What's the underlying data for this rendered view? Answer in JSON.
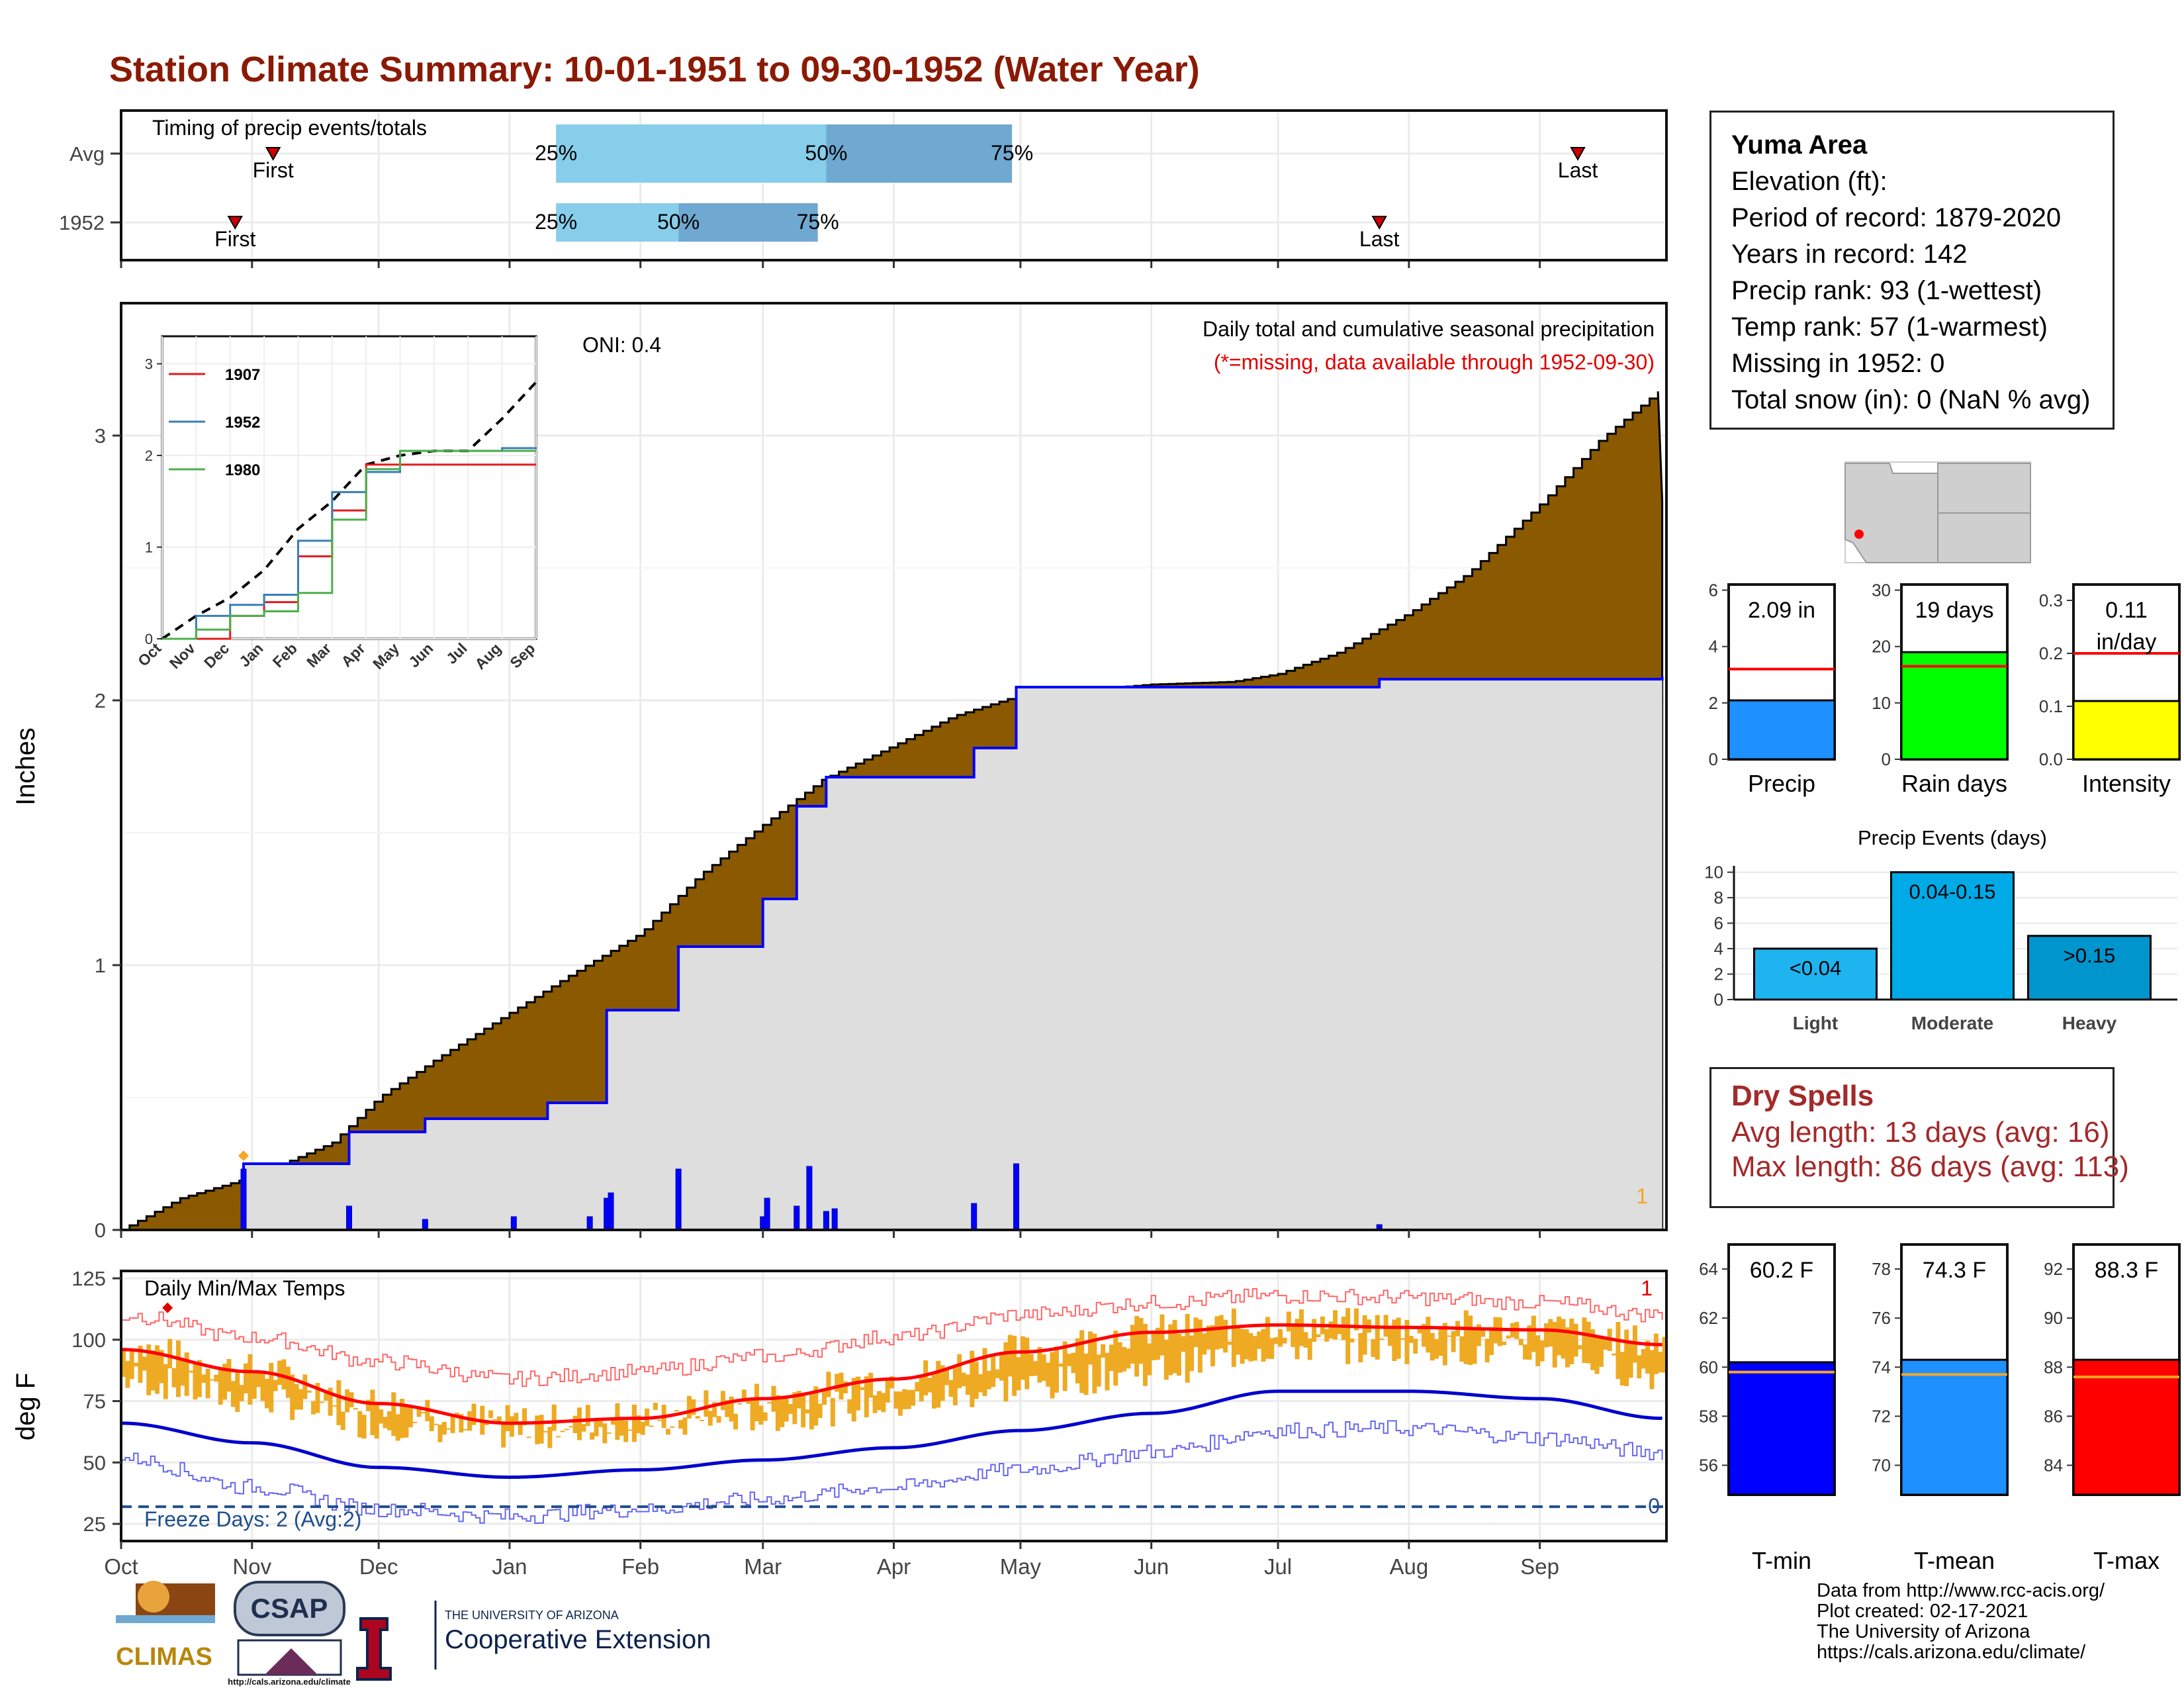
{
  "title": "Station Climate Summary: 10-01-1951 to 09-30-1952 (Water Year)",
  "timing": {
    "label": "Timing of precip events/totals",
    "rows": [
      {
        "name": "Avg",
        "p25": "25%",
        "p50": "50%",
        "p75": "75%",
        "first": "First",
        "last": "Last"
      },
      {
        "name": "1952",
        "p25": "25%",
        "p50": "50%",
        "p75": "75%",
        "first": "First",
        "last": "Last"
      }
    ]
  },
  "precip_panel": {
    "ylabel": "Inches",
    "yticks": [
      "0",
      "1",
      "2",
      "3"
    ],
    "oni": "ONI: 0.4",
    "desc1": "Daily total and cumulative seasonal precipitation",
    "desc2": "(*=missing, data available through 1952-09-30)",
    "missing_count": "1",
    "inset": {
      "xticks": [
        "Oct",
        "Nov",
        "Dec",
        "Jan",
        "Feb",
        "Mar",
        "Apr",
        "May",
        "Jun",
        "Jul",
        "Aug",
        "Sep"
      ],
      "yticks": [
        "0",
        "1",
        "2",
        "3"
      ],
      "legend": [
        "1907",
        "1952",
        "1980"
      ]
    }
  },
  "temp_panel": {
    "ylabel": "deg F",
    "title": "Daily Min/Max Temps",
    "yticks": [
      "25",
      "50",
      "75",
      "100",
      "125"
    ],
    "freeze": "Freeze Days: 2 (Avg:2)",
    "marker_max": "1",
    "marker_min": "0",
    "xticks": [
      "Oct",
      "Nov",
      "Dec",
      "Jan",
      "Feb",
      "Mar",
      "Apr",
      "May",
      "Jun",
      "Jul",
      "Aug",
      "Sep"
    ]
  },
  "station": {
    "name": "Yuma Area",
    "lines": [
      "Elevation (ft):",
      "Period of record: 1879-2020",
      "Years in record: 142",
      "Precip rank: 93 (1-wettest)",
      "Temp rank: 57 (1-warmest)",
      "Missing in 1952: 0",
      "Total snow (in): 0 (NaN % avg)"
    ]
  },
  "small_bars": [
    {
      "label": "Precip",
      "value_text": "2.09 in",
      "yticks": [
        "0",
        "2",
        "4",
        "6"
      ]
    },
    {
      "label": "Rain days",
      "value_text": "19 days",
      "yticks": [
        "0",
        "10",
        "20",
        "30"
      ]
    },
    {
      "label": "Intensity",
      "value_text": "0.11",
      "value_text2": "in/day",
      "yticks": [
        "0.0",
        "0.1",
        "0.2",
        "0.3"
      ]
    }
  ],
  "events": {
    "title": "Precip Events (days)",
    "yticks": [
      "0",
      "2",
      "4",
      "6",
      "8",
      "10"
    ],
    "bars": [
      {
        "label": "Light",
        "range": "<0.04"
      },
      {
        "label": "Moderate",
        "range": "0.04-0.15"
      },
      {
        "label": "Heavy",
        "range": ">0.15"
      }
    ]
  },
  "dry_spells": {
    "title": "Dry Spells",
    "avg": "Avg length: 13 days (avg: 16)",
    "max": "Max length: 86 days (avg: 113)"
  },
  "temp_bars": [
    {
      "label": "T-min",
      "value_text": "60.2 F",
      "yticks": [
        "56",
        "58",
        "60",
        "62",
        "64"
      ]
    },
    {
      "label": "T-mean",
      "value_text": "74.3 F",
      "yticks": [
        "70",
        "72",
        "74",
        "76",
        "78"
      ]
    },
    {
      "label": "T-max",
      "value_text": "88.3 F",
      "yticks": [
        "84",
        "86",
        "88",
        "90",
        "92"
      ]
    }
  ],
  "credits": [
    "Data from http://www.rcc-acis.org/",
    "Plot created: 02-17-2021",
    "The University of Arizona",
    "https://cals.arizona.edu/climate/"
  ],
  "logos": {
    "climas": "CLIMAS",
    "csap": "CSAP",
    "csap_url": "http://cals.arizona.edu/climate",
    "ua_small": "THE UNIVERSITY OF ARIZONA",
    "ua_big": "Cooperative Extension"
  },
  "colors": {
    "title": "#8B1A05",
    "cum_precip": "#8B5A00",
    "normal_fill": "#DEDEDE",
    "daily_bar": "#0000FF",
    "tmax": "#FF0000",
    "tmin": "#0000CD",
    "temp_range": "#EEAA22",
    "dry_text": "#A32A2A"
  },
  "chart_data": [
    {
      "type": "bar",
      "title": "Timing of precip events/totals",
      "categories": [
        "Avg",
        "1952"
      ],
      "series": [
        {
          "name": "First",
          "values": [
            "1951-11-06",
            "1951-10-28"
          ]
        },
        {
          "name": "25%",
          "values": [
            "1952-01-12",
            "1952-01-12"
          ]
        },
        {
          "name": "50%",
          "values": [
            "1952-03-16",
            "1952-02-10"
          ]
        },
        {
          "name": "75%",
          "values": [
            "1952-04-29",
            "1952-03-14"
          ]
        },
        {
          "name": "Last",
          "values": [
            "1952-09-10",
            "1952-07-25"
          ]
        }
      ]
    },
    {
      "type": "area",
      "title": "Daily total and cumulative seasonal precipitation",
      "xlabel": "",
      "ylabel": "Inches",
      "ylim": [
        0,
        3.5
      ],
      "xlim": [
        "1951-10-01",
        "1952-09-30"
      ],
      "series": [
        {
          "name": "cumulative",
          "x": [
            "1951-10-01",
            "1951-10-15",
            "1951-11-01",
            "1951-11-20",
            "1951-12-01",
            "1951-12-15",
            "1952-01-01",
            "1952-01-15",
            "1952-02-01",
            "1952-02-15",
            "1952-03-01",
            "1952-03-15",
            "1952-04-01",
            "1952-04-15",
            "1952-05-01",
            "1952-06-01",
            "1952-06-20",
            "1952-07-01",
            "1952-07-15",
            "1952-08-01",
            "1952-08-15",
            "1952-09-01",
            "1952-09-15",
            "1952-09-30"
          ],
          "values": [
            0.0,
            0.12,
            0.2,
            0.33,
            0.5,
            0.65,
            0.82,
            0.96,
            1.12,
            1.34,
            1.53,
            1.7,
            1.83,
            1.94,
            2.02,
            2.06,
            2.07,
            2.1,
            2.18,
            2.33,
            2.48,
            2.74,
            2.98,
            3.18
          ]
        },
        {
          "name": "1952",
          "x": [
            "1951-10-01",
            "1951-10-30",
            "1951-11-24",
            "1951-12-12",
            "1952-01-10",
            "1952-01-24",
            "1952-02-10",
            "1952-03-01",
            "1952-03-09",
            "1952-03-16",
            "1952-04-20",
            "1952-04-30",
            "1952-07-25",
            "1952-09-30"
          ],
          "values": [
            0.0,
            0.25,
            0.37,
            0.42,
            0.48,
            0.83,
            1.07,
            1.25,
            1.6,
            1.71,
            1.82,
            2.05,
            2.08,
            2.09
          ]
        }
      ],
      "daily": {
        "x": [
          "1951-10-30",
          "1951-11-24",
          "1951-12-12",
          "1952-01-02",
          "1952-01-20",
          "1952-01-24",
          "1952-01-25",
          "1952-02-10",
          "1952-03-01",
          "1952-03-02",
          "1952-03-09",
          "1952-03-12",
          "1952-03-16",
          "1952-03-18",
          "1952-04-20",
          "1952-04-30",
          "1952-07-25"
        ],
        "values": [
          0.23,
          0.09,
          0.04,
          0.05,
          0.05,
          0.12,
          0.14,
          0.23,
          0.05,
          0.12,
          0.09,
          0.24,
          0.07,
          0.08,
          0.1,
          0.25,
          0.02
        ]
      }
    },
    {
      "type": "line",
      "title": "inset cumulative precipitation",
      "ylim": [
        0,
        3.3
      ],
      "x": [
        "Oct",
        "Nov",
        "Dec",
        "Jan",
        "Feb",
        "Mar",
        "Apr",
        "May",
        "Jun",
        "Jul",
        "Aug",
        "Sep"
      ],
      "series": [
        {
          "name": "",
          "values": [
            0.0,
            0.25,
            0.45,
            0.75,
            1.2,
            1.5,
            1.9,
            2.0,
            2.05,
            2.05,
            2.4,
            2.8
          ]
        },
        {
          "name": "1907",
          "values": [
            0.0,
            0.0,
            0.25,
            0.4,
            0.9,
            1.4,
            1.9,
            1.9,
            1.9,
            1.9,
            1.9,
            1.9
          ]
        },
        {
          "name": "1952",
          "values": [
            0.0,
            0.25,
            0.37,
            0.48,
            1.07,
            1.6,
            1.82,
            2.05,
            2.05,
            2.05,
            2.08,
            2.09
          ]
        },
        {
          "name": "1980",
          "values": [
            0.0,
            0.1,
            0.25,
            0.3,
            0.5,
            1.3,
            1.85,
            2.05,
            2.05,
            2.05,
            2.05,
            2.05
          ]
        }
      ]
    },
    {
      "type": "line",
      "title": "Daily Min/Max Temps",
      "ylabel": "deg F",
      "ylim": [
        18,
        128
      ],
      "x": [
        "Oct",
        "Nov",
        "Dec",
        "Jan",
        "Feb",
        "Mar",
        "Apr",
        "May",
        "Jun",
        "Jul",
        "Aug",
        "Sep",
        "Sep end"
      ],
      "series": [
        {
          "name": "",
          "values": [
            96,
            87,
            74,
            66,
            68,
            76,
            84,
            95,
            103,
            106,
            105,
            104,
            98
          ]
        },
        {
          "name": "",
          "values": [
            66,
            58,
            48,
            44,
            47,
            51,
            56,
            63,
            70,
            79,
            79,
            76,
            68
          ]
        },
        {
          "name": "",
          "values": [
            110,
            101,
            91,
            84,
            87,
            93,
            101,
            110,
            115,
            118,
            117,
            115,
            110
          ]
        },
        {
          "name": "",
          "values": [
            52,
            40,
            31,
            28,
            31,
            35,
            40,
            47,
            54,
            63,
            64,
            60,
            54
          ]
        }
      ],
      "freeze_line": 32
    },
    {
      "type": "bar",
      "categories": [
        "Precip"
      ],
      "values": [
        2.09
      ],
      "ylim": [
        0,
        6.2
      ],
      "reference": 3.2
    },
    {
      "type": "bar",
      "categories": [
        "Rain days"
      ],
      "values": [
        19
      ],
      "ylim": [
        0,
        31
      ],
      "reference": 16.5
    },
    {
      "type": "bar",
      "categories": [
        "Intensity"
      ],
      "values": [
        0.11
      ],
      "ylim": [
        0,
        0.33
      ],
      "reference": 0.2
    },
    {
      "type": "bar",
      "title": "Precip Events (days)",
      "categories": [
        "Light",
        "Moderate",
        "Heavy"
      ],
      "values": [
        4,
        10,
        5
      ],
      "ylim": [
        0,
        10.5
      ]
    },
    {
      "type": "bar",
      "categories": [
        "T-min"
      ],
      "values": [
        60.2
      ],
      "ylim": [
        54.8,
        65
      ],
      "reference": 59.8
    },
    {
      "type": "bar",
      "categories": [
        "T-mean"
      ],
      "values": [
        74.3
      ],
      "ylim": [
        68.8,
        79
      ],
      "reference": 73.7
    },
    {
      "type": "bar",
      "categories": [
        "T-max"
      ],
      "values": [
        88.3
      ],
      "ylim": [
        82.8,
        93
      ],
      "reference": 87.6
    }
  ]
}
